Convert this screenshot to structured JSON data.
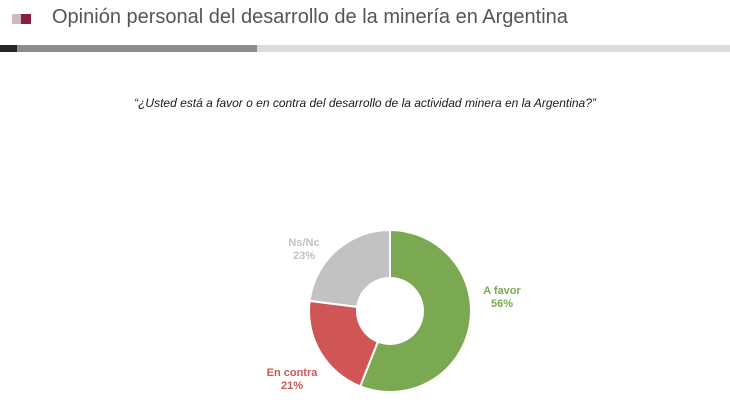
{
  "header": {
    "title": "Opinión personal del desarrollo de la minería en Argentina"
  },
  "chart_data": {
    "type": "pie",
    "donut": true,
    "title": "“¿Usted está a favor o en contra del desarrollo de la actividad minera en la Argentina?”",
    "slices": [
      {
        "label": "A favor",
        "value": 56,
        "display": "56%",
        "color": "#7ba951"
      },
      {
        "label": "En contra",
        "value": 21,
        "display": "21%",
        "color": "#d05555"
      },
      {
        "label": "Ns/Nc",
        "value": 23,
        "display": "23%",
        "color": "#c2c2c2"
      }
    ]
  }
}
